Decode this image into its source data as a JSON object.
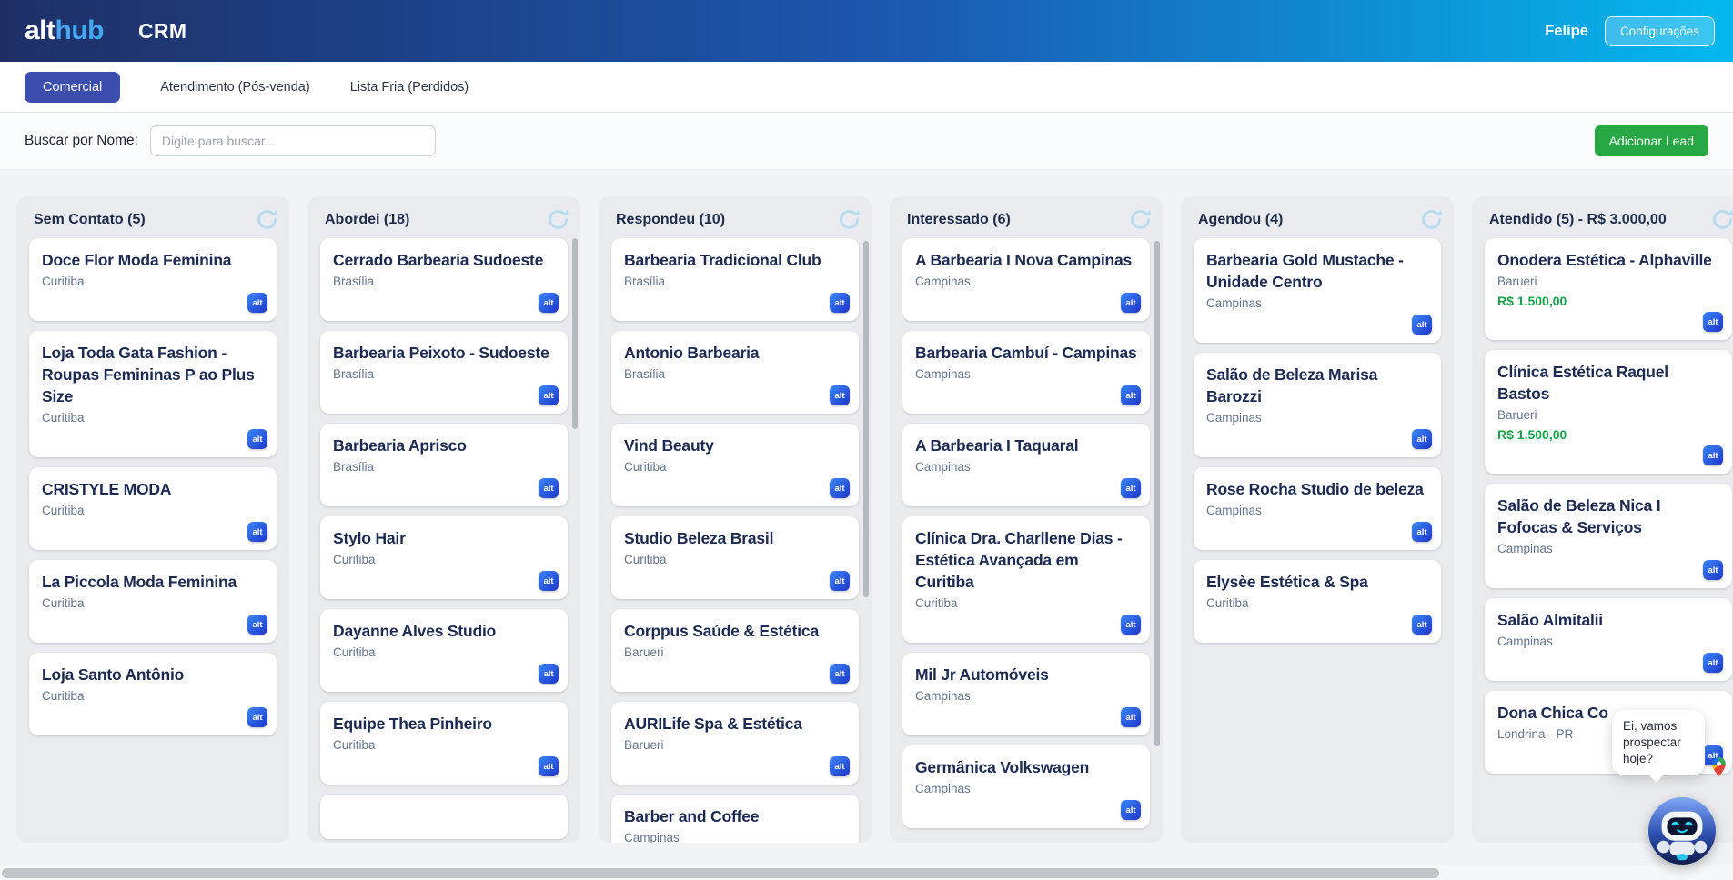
{
  "header": {
    "logo_alt": "alt",
    "logo_hub": "hub",
    "app_title": "CRM",
    "user_name": "Felipe",
    "settings_label": "Configurações"
  },
  "tabs": [
    {
      "label": "Comercial",
      "active": true
    },
    {
      "label": "Atendimento (Pós-venda)",
      "active": false
    },
    {
      "label": "Lista Fria (Perdidos)",
      "active": false
    }
  ],
  "search": {
    "label": "Buscar por Nome:",
    "placeholder": "Digite para buscar..."
  },
  "actions": {
    "add_lead_label": "Adicionar Lead"
  },
  "branding": {
    "badge_label": "alt"
  },
  "board": {
    "columns": [
      {
        "title": "Sem Contato (5)",
        "cards": [
          {
            "name": "Doce Flor Moda Feminina",
            "location": "Curitiba"
          },
          {
            "name": "Loja Toda Gata Fashion - Roupas Femininas P ao Plus Size",
            "location": "Curitiba"
          },
          {
            "name": "CRISTYLE MODA",
            "location": "Curitiba"
          },
          {
            "name": "La Piccola Moda Feminina",
            "location": "Curitiba"
          },
          {
            "name": "Loja Santo Antônio",
            "location": "Curitiba"
          }
        ]
      },
      {
        "title": "Abordei (18)",
        "cards": [
          {
            "name": "Cerrado Barbearia Sudoeste",
            "location": "Brasília"
          },
          {
            "name": "Barbearia Peixoto - Sudoeste",
            "location": "Brasília"
          },
          {
            "name": "Barbearia Aprisco",
            "location": "Brasília"
          },
          {
            "name": "Stylo Hair",
            "location": "Curitiba"
          },
          {
            "name": "Dayanne Alves Studio",
            "location": "Curitiba"
          },
          {
            "name": "Equipe Thea Pinheiro",
            "location": "Curitiba"
          },
          {
            "name": "",
            "location": ""
          }
        ]
      },
      {
        "title": "Respondeu (10)",
        "cards": [
          {
            "name": "Barbearia Tradicional Club",
            "location": "Brasília"
          },
          {
            "name": "Antonio Barbearia",
            "location": "Brasília"
          },
          {
            "name": "Vind Beauty",
            "location": "Curitiba"
          },
          {
            "name": "Studio Beleza Brasil",
            "location": "Curitiba"
          },
          {
            "name": "Corppus Saúde & Estética",
            "location": "Barueri"
          },
          {
            "name": "AURILife Spa & Estética",
            "location": "Barueri"
          },
          {
            "name": "Barber and Coffee",
            "location": "Campinas"
          }
        ]
      },
      {
        "title": "Interessado (6)",
        "cards": [
          {
            "name": "A Barbearia I Nova Campinas",
            "location": "Campinas"
          },
          {
            "name": "Barbearia Cambuí - Campinas",
            "location": "Campinas"
          },
          {
            "name": "A Barbearia I Taquaral",
            "location": "Campinas"
          },
          {
            "name": "Clínica Dra. Charllene Dias - Estética Avançada em Curitiba",
            "location": "Curitiba"
          },
          {
            "name": "Mil Jr Automóveis",
            "location": "Campinas"
          },
          {
            "name": "Germânica Volkswagen",
            "location": "Campinas"
          }
        ]
      },
      {
        "title": "Agendou (4)",
        "cards": [
          {
            "name": "Barbearia Gold Mustache - Unidade Centro",
            "location": "Campinas"
          },
          {
            "name": "Salão de Beleza Marisa Barozzi",
            "location": "Campinas"
          },
          {
            "name": "Rose Rocha Studio de beleza",
            "location": "Campinas"
          },
          {
            "name": "Elysèe Estética & Spa",
            "location": "Curitiba"
          }
        ]
      },
      {
        "title": "Atendido (5) - R$ 3.000,00",
        "cards": [
          {
            "name": "Onodera Estética - Alphaville",
            "location": "Barueri",
            "price": "R$ 1.500,00"
          },
          {
            "name": "Clínica Estética Raquel Bastos",
            "location": "Barueri",
            "price": "R$ 1.500,00"
          },
          {
            "name": "Salão de Beleza Nica I Fofocas & Serviços",
            "location": "Campinas"
          },
          {
            "name": "Salão Almitalii",
            "location": "Campinas"
          },
          {
            "name": "Dona Chica Co",
            "location": "Londrina - PR"
          }
        ]
      }
    ]
  },
  "chat": {
    "bubble_text": "Ei, vamos prospectar hoje?"
  },
  "colors": {
    "header_gradient_start": "#1e2f66",
    "header_gradient_mid": "#1c58b0",
    "header_gradient_end": "#04b8ef",
    "active_tab": "#3b4eae",
    "add_lead_green": "#28a745",
    "price_green": "#16a34a",
    "badge_blue_start": "#3b87f8",
    "badge_blue_end": "#1f35c9",
    "logo_hub_blue": "#45a7f0",
    "card_title_navy": "#1d2b53"
  }
}
